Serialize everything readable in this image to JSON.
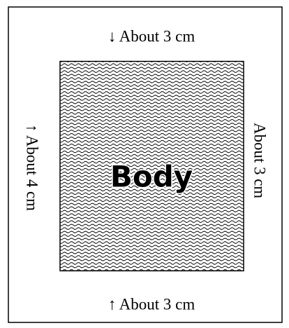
{
  "labels": {
    "top": "↓ About 3 cm",
    "bottom": "↑ About 3 cm",
    "left": "↑ About 4 cm",
    "right": "About 3 cm"
  },
  "body": "Body"
}
